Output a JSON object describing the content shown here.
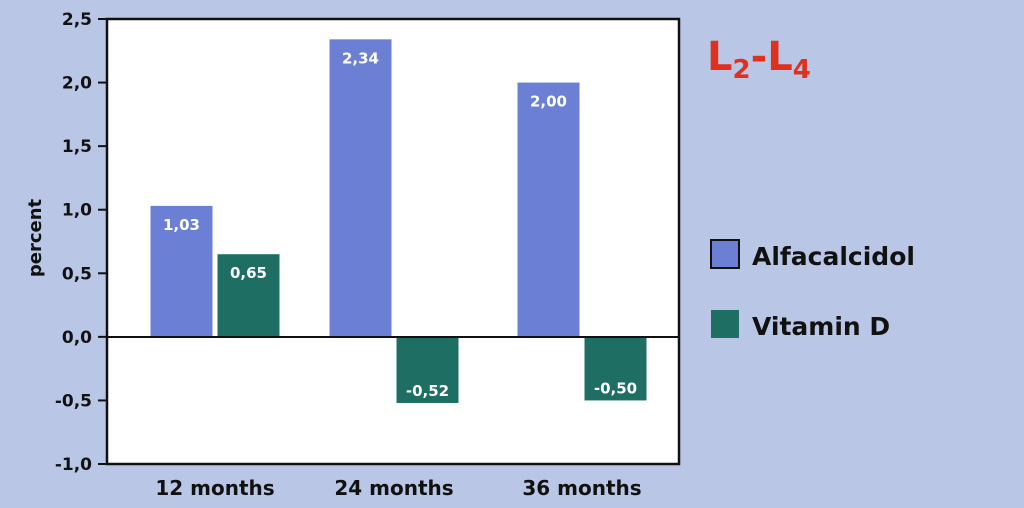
{
  "chart_data": {
    "type": "bar",
    "title": {
      "main": "L",
      "sub1": "2",
      "dash": "-",
      "main2": "L",
      "sub2": "4"
    },
    "ylabel": "percent",
    "xlabel": "",
    "ylim": [
      -1.0,
      2.5
    ],
    "yticks": [
      {
        "value": 2.5,
        "label": "2,5"
      },
      {
        "value": 2.0,
        "label": "2,0"
      },
      {
        "value": 1.5,
        "label": "1,5"
      },
      {
        "value": 1.0,
        "label": "1,0"
      },
      {
        "value": 0.5,
        "label": "0,5"
      },
      {
        "value": 0.0,
        "label": "0,0"
      },
      {
        "value": -0.5,
        "label": "-0,5"
      },
      {
        "value": -1.0,
        "label": "-1,0"
      }
    ],
    "categories": [
      "12 months",
      "24 months",
      "36 months"
    ],
    "series": [
      {
        "name": "Alfacalcidol",
        "color": "#6b7fd4",
        "values": [
          1.03,
          2.34,
          2.0
        ],
        "labels": [
          "1,03",
          "2,34",
          "2,00"
        ]
      },
      {
        "name": "Vitamin D",
        "color": "#1e6e64",
        "values": [
          0.65,
          -0.52,
          -0.5
        ],
        "labels": [
          "0,65",
          "-0,52",
          "-0,50"
        ]
      }
    ],
    "grid": false,
    "legend_position": "right"
  }
}
